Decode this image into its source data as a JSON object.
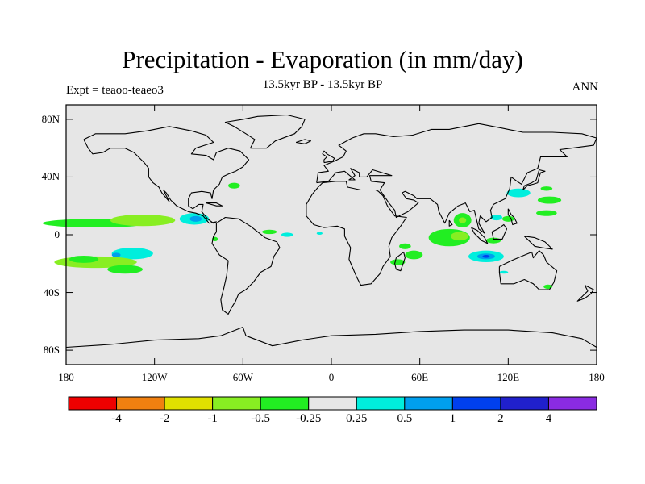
{
  "title": "Precipitation - Evaporation (in mm/day)",
  "subtitle": "13.5kyr BP - 13.5kyr BP",
  "left_label": "Expt = teaoo-teaeo3",
  "right_label": "ANN",
  "map": {
    "projection": "cylindrical equidistant",
    "lon_range": [
      -180,
      180
    ],
    "lat_range": [
      -90,
      90
    ],
    "land_fill": "#e6e6e6",
    "lat_ticks": [
      {
        "value": 80,
        "label": "80N"
      },
      {
        "value": 40,
        "label": "40N"
      },
      {
        "value": 0,
        "label": "0"
      },
      {
        "value": -40,
        "label": "40S"
      },
      {
        "value": -80,
        "label": "80S"
      }
    ],
    "lon_ticks": [
      {
        "value": -180,
        "label": "180"
      },
      {
        "value": -120,
        "label": "120W"
      },
      {
        "value": -60,
        "label": "60W"
      },
      {
        "value": 0,
        "label": "0"
      },
      {
        "value": 60,
        "label": "60E"
      },
      {
        "value": 120,
        "label": "120E"
      },
      {
        "value": 180,
        "label": "180"
      }
    ],
    "anomaly_patches": [
      {
        "lon": -160,
        "lat": 8,
        "dlon": 36,
        "dlat": 3,
        "color": "#22ee22"
      },
      {
        "lon": -128,
        "lat": 10,
        "dlon": 22,
        "dlat": 4,
        "color": "#88ee22"
      },
      {
        "lon": -93,
        "lat": 11,
        "dlon": 10,
        "dlat": 4,
        "color": "#00eedd"
      },
      {
        "lon": -92,
        "lat": 11,
        "dlon": 4,
        "dlat": 2,
        "color": "#009fee"
      },
      {
        "lon": -135,
        "lat": -13,
        "dlon": 14,
        "dlat": 4,
        "color": "#00eedd"
      },
      {
        "lon": -146,
        "lat": -14,
        "dlon": 3,
        "dlat": 1.5,
        "color": "#009fee"
      },
      {
        "lon": -160,
        "lat": -19,
        "dlon": 28,
        "dlat": 4,
        "color": "#88ee22"
      },
      {
        "lon": -168,
        "lat": -17,
        "dlon": 10,
        "dlat": 2.5,
        "color": "#22ee22"
      },
      {
        "lon": -140,
        "lat": -24,
        "dlon": 12,
        "dlat": 3,
        "color": "#22ee22"
      },
      {
        "lon": -79,
        "lat": -3,
        "dlon": 2,
        "dlat": 1.5,
        "color": "#22ee22"
      },
      {
        "lon": -66,
        "lat": 34,
        "dlon": 4,
        "dlat": 2,
        "color": "#22ee22"
      },
      {
        "lon": -42,
        "lat": 2,
        "dlon": 5,
        "dlat": 1.5,
        "color": "#22ee22"
      },
      {
        "lon": -30,
        "lat": 0,
        "dlon": 4,
        "dlat": 1.5,
        "color": "#00eedd"
      },
      {
        "lon": -8,
        "lat": 1,
        "dlon": 2,
        "dlat": 1,
        "color": "#00eedd"
      },
      {
        "lon": 50,
        "lat": -8,
        "dlon": 4,
        "dlat": 2,
        "color": "#22ee22"
      },
      {
        "lon": 56,
        "lat": -14,
        "dlon": 6,
        "dlat": 3,
        "color": "#22ee22"
      },
      {
        "lon": 45,
        "lat": -19,
        "dlon": 5,
        "dlat": 2,
        "color": "#22ee22"
      },
      {
        "lon": 80,
        "lat": -2,
        "dlon": 14,
        "dlat": 6,
        "color": "#22ee22"
      },
      {
        "lon": 87,
        "lat": -1,
        "dlon": 6,
        "dlat": 3,
        "color": "#88ee22"
      },
      {
        "lon": 89,
        "lat": 10,
        "dlon": 6,
        "dlat": 5,
        "color": "#22ee22"
      },
      {
        "lon": 89,
        "lat": 10,
        "dlon": 2.5,
        "dlat": 2,
        "color": "#88ee22"
      },
      {
        "lon": 105,
        "lat": -15,
        "dlon": 12,
        "dlat": 4,
        "color": "#00eedd"
      },
      {
        "lon": 105,
        "lat": -15,
        "dlon": 6,
        "dlat": 2,
        "color": "#009fee"
      },
      {
        "lon": 105,
        "lat": -15,
        "dlon": 2.5,
        "dlat": 1,
        "color": "#0040ee"
      },
      {
        "lon": 110,
        "lat": -4,
        "dlon": 5,
        "dlat": 2,
        "color": "#22ee22"
      },
      {
        "lon": 112,
        "lat": 12,
        "dlon": 4,
        "dlat": 2,
        "color": "#00eedd"
      },
      {
        "lon": 120,
        "lat": 11,
        "dlon": 4,
        "dlat": 2,
        "color": "#22ee22"
      },
      {
        "lon": 127,
        "lat": 29,
        "dlon": 8,
        "dlat": 3,
        "color": "#00eedd"
      },
      {
        "lon": 148,
        "lat": 24,
        "dlon": 8,
        "dlat": 2.5,
        "color": "#22ee22"
      },
      {
        "lon": 146,
        "lat": 15,
        "dlon": 7,
        "dlat": 2,
        "color": "#22ee22"
      },
      {
        "lon": 146,
        "lat": 32,
        "dlon": 4,
        "dlat": 1.5,
        "color": "#22ee22"
      },
      {
        "lon": 147,
        "lat": -36,
        "dlon": 3,
        "dlat": 1.5,
        "color": "#22ee22"
      },
      {
        "lon": 117,
        "lat": -26,
        "dlon": 3,
        "dlat": 1,
        "color": "#00eedd"
      }
    ]
  },
  "colorbar": {
    "colors": [
      "#ee0000",
      "#f08010",
      "#e0e000",
      "#88ee22",
      "#22ee22",
      "#e6e6e6",
      "#00eedd",
      "#009fee",
      "#0040ee",
      "#2020cc",
      "#8a2be2"
    ],
    "labels": [
      "-4",
      "-2",
      "-1",
      "-0.5",
      "-0.25",
      "0.25",
      "0.5",
      "1",
      "2",
      "4"
    ]
  }
}
